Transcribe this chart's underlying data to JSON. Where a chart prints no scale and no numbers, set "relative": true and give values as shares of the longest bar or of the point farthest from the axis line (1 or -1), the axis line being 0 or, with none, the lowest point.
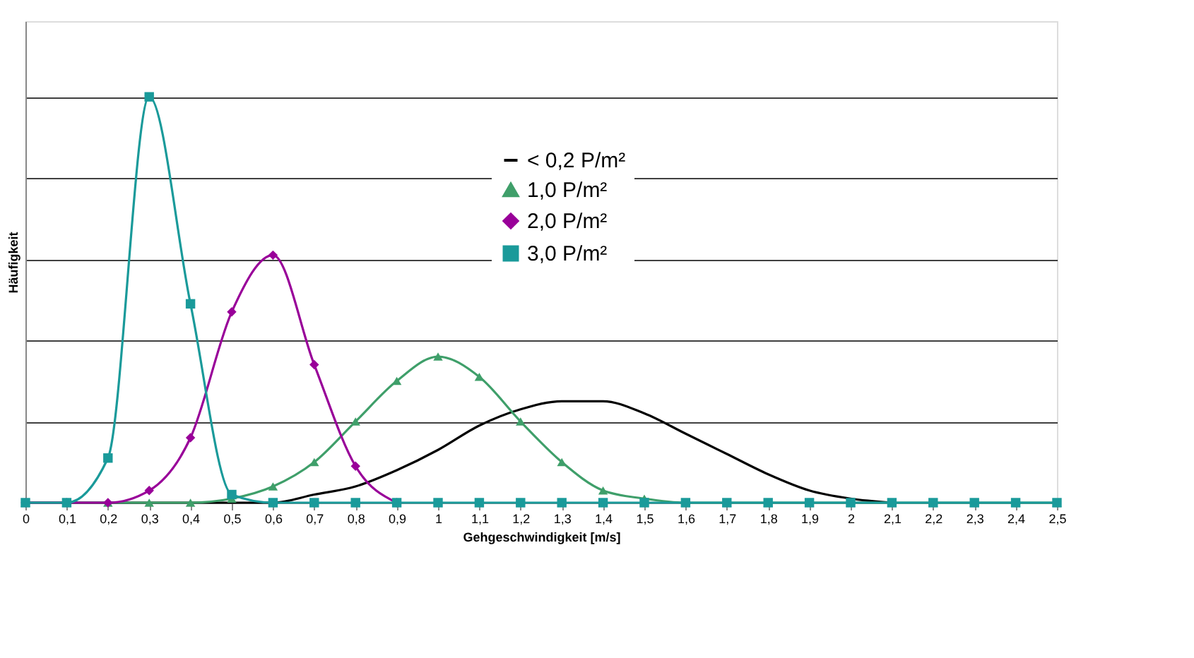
{
  "chart_data": {
    "type": "line",
    "relative": true,
    "xlabel": "Gehgeschwindigkeit [m/s]",
    "ylabel": "Häufigkeit",
    "categories": [
      "0",
      "0,1",
      "0,2",
      "0,3",
      "0,4",
      "0,5",
      "0,6",
      "0,7",
      "0,8",
      "0,9",
      "1",
      "1,1",
      "1,2",
      "1,3",
      "1,4",
      "1,5",
      "1,6",
      "1,7",
      "1,8",
      "1,9",
      "2",
      "2,1",
      "2,2",
      "2,3",
      "2,4",
      "2,5"
    ],
    "series": [
      {
        "name": "< 0,2 P/m²",
        "color": "#000000",
        "marker": "none",
        "values": [
          0,
          0,
          0,
          0,
          0,
          0,
          0,
          0.02,
          0.04,
          0.08,
          0.13,
          0.19,
          0.23,
          0.25,
          0.25,
          0.22,
          0.17,
          0.12,
          0.07,
          0.03,
          0.01,
          0,
          null,
          null,
          null,
          null
        ]
      },
      {
        "name": "1,0 P/m²",
        "color": "#3f9f6a",
        "marker": "triangle",
        "values": [
          0,
          0,
          0,
          0,
          0,
          0.01,
          0.04,
          0.1,
          0.2,
          0.3,
          0.36,
          0.31,
          0.2,
          0.1,
          0.03,
          0.01,
          0,
          0,
          0,
          0,
          0,
          0,
          0,
          0,
          0,
          0
        ]
      },
      {
        "name": "2,0 P/m²",
        "color": "#990099",
        "marker": "diamond",
        "values": [
          0,
          0,
          0,
          0.03,
          0.16,
          0.47,
          0.61,
          0.34,
          0.09,
          0,
          null,
          null,
          null,
          null,
          null,
          null,
          null,
          null,
          null,
          null,
          null,
          null,
          null,
          null,
          null,
          null
        ]
      },
      {
        "name": "3,0 P/m²",
        "color": "#1a9a9a",
        "marker": "square",
        "values": [
          0,
          0,
          0.11,
          1,
          0.49,
          0.02,
          0,
          0,
          0,
          0,
          0,
          0,
          0,
          0,
          0,
          0,
          0,
          0,
          0,
          0,
          0,
          0,
          0,
          0,
          0,
          0
        ]
      }
    ],
    "grid": "y",
    "legend": "top"
  }
}
